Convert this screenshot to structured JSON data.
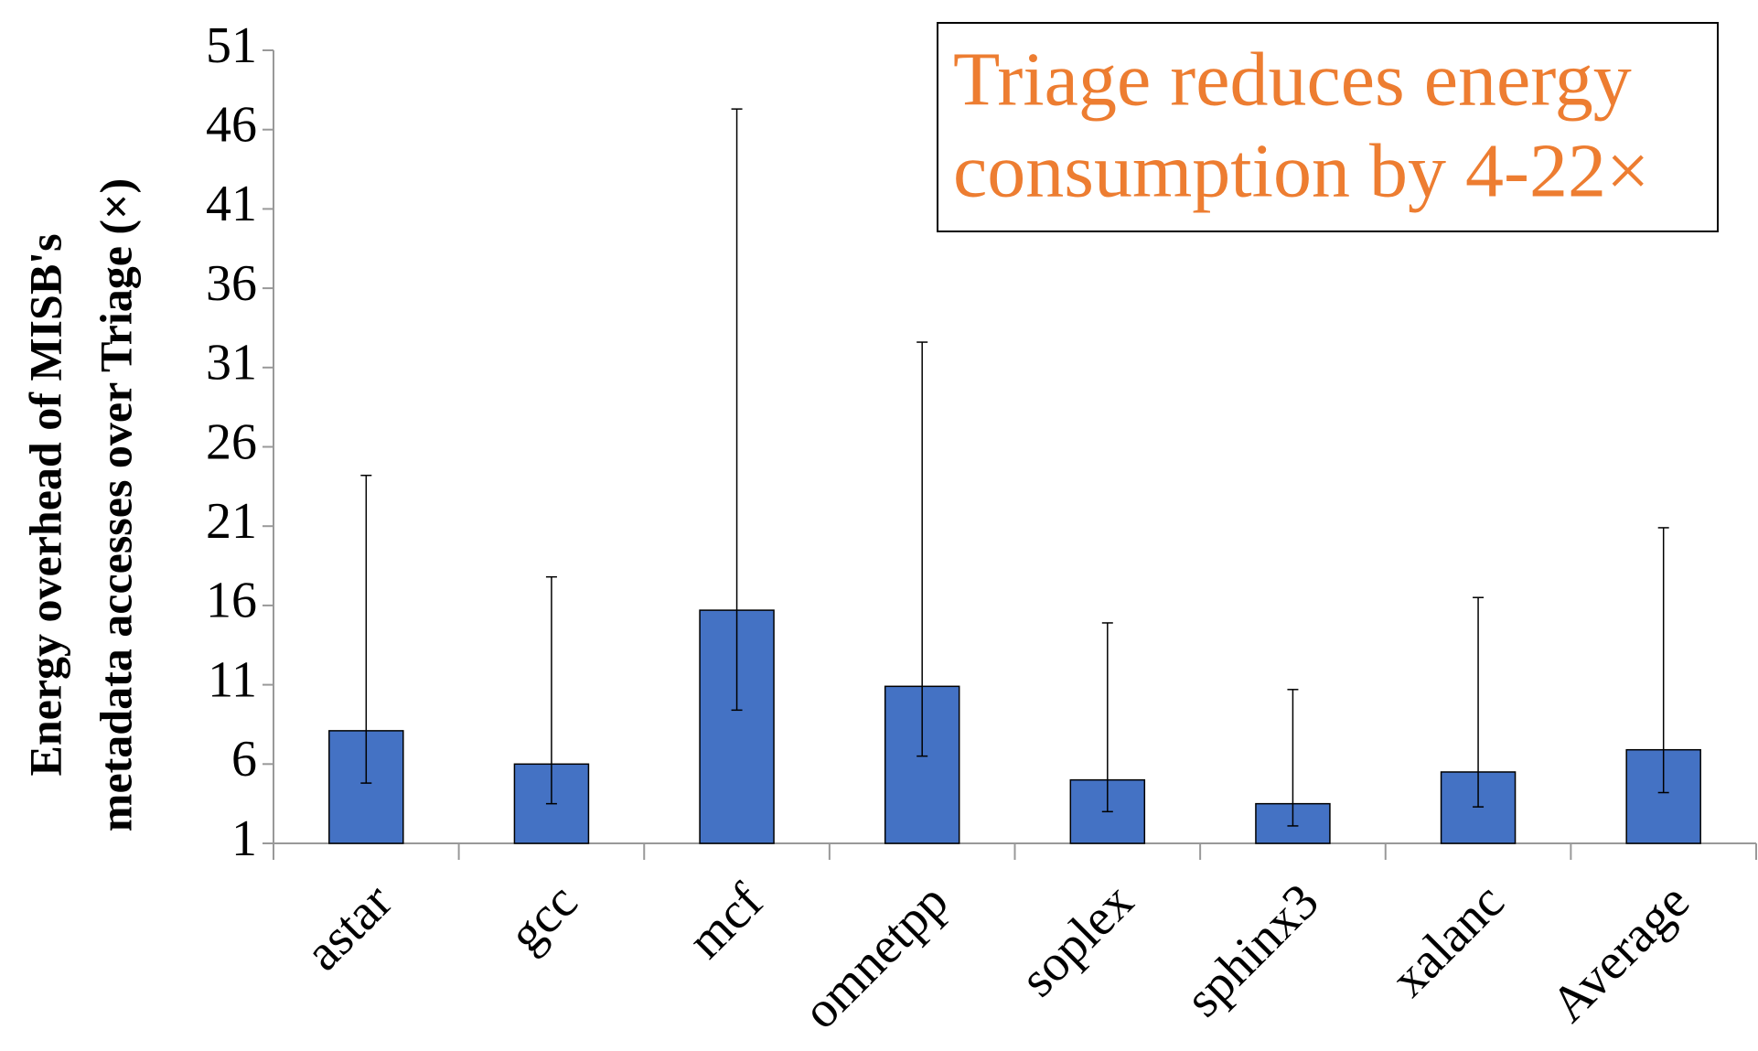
{
  "chart_data": {
    "type": "bar",
    "y_label": [
      "Energy overhead of MISB's",
      "metadata accesses over Triage (×)"
    ],
    "annotation": [
      "Triage reduces energy",
      "consumption by 4-22×"
    ],
    "categories": [
      "astar",
      "gcc",
      "mcf",
      "omnetpp",
      "soplex",
      "sphinx3",
      "xalanc",
      "Average"
    ],
    "values": [
      8.1,
      6.0,
      15.7,
      10.9,
      5.0,
      3.5,
      5.5,
      6.9
    ],
    "low": [
      4.8,
      3.5,
      9.4,
      6.5,
      3.0,
      2.1,
      3.3,
      4.2
    ],
    "high": [
      24.2,
      17.8,
      47.3,
      32.6,
      14.9,
      10.7,
      16.5,
      20.9
    ],
    "color": "#4472c4",
    "annotation_color": "#ed7d31",
    "ylim": [
      1,
      51
    ],
    "yticks": [
      1,
      6,
      11,
      16,
      21,
      26,
      31,
      36,
      41,
      46,
      51
    ],
    "grid": false
  }
}
